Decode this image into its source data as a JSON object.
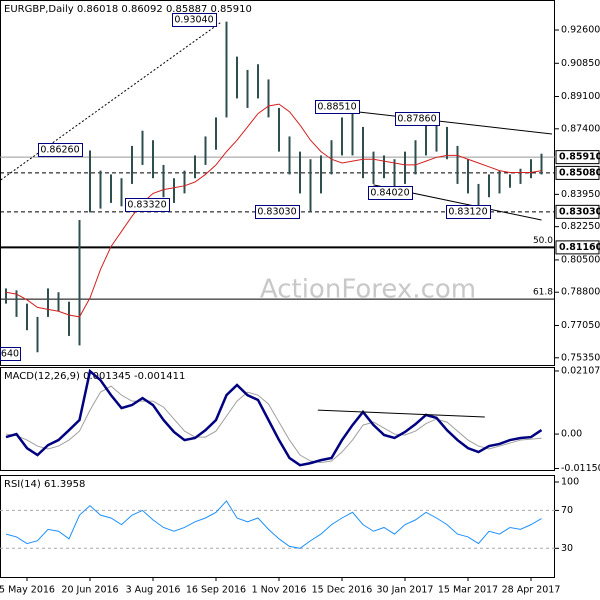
{
  "chart_data": [
    {
      "type": "ohlc",
      "title": "EURGBP,Daily  0.86018 0.86092 0.85887 0.85910",
      "watermark": "ActionForex.com",
      "categories": [
        null,
        null,
        "5 May 2016",
        null,
        null,
        null,
        null,
        null,
        "20 Jun 2016",
        null,
        null,
        null,
        null,
        null,
        "3 Aug 2016",
        null,
        null,
        null,
        null,
        null,
        "16 Sep 2016",
        null,
        null,
        null,
        null,
        null,
        "1 Nov 2016",
        null,
        null,
        null,
        null,
        null,
        "15 Dec 2016",
        null,
        null,
        null,
        null,
        null,
        "30 Jan 2017",
        null,
        null,
        null,
        null,
        null,
        "15 Mar 2017",
        null,
        null,
        null,
        null,
        null,
        "28 Apr 2017",
        null
      ],
      "high": [
        0.79,
        0.789,
        0.782,
        0.775,
        0.79,
        0.788,
        0.783,
        0.826,
        0.8626,
        0.852,
        0.85,
        0.848,
        0.865,
        0.873,
        0.868,
        0.855,
        0.848,
        0.852,
        0.86,
        0.87,
        0.88,
        0.9304,
        0.912,
        0.905,
        0.908,
        0.9,
        0.885,
        0.87,
        0.862,
        0.858,
        0.86,
        0.868,
        0.88,
        0.8851,
        0.875,
        0.862,
        0.86,
        0.858,
        0.862,
        0.868,
        0.8786,
        0.878,
        0.875,
        0.865,
        0.858,
        0.845,
        0.85,
        0.852,
        0.85,
        0.853,
        0.858,
        0.86092
      ],
      "low": [
        0.782,
        0.775,
        0.768,
        0.7564,
        0.775,
        0.778,
        0.765,
        0.76,
        0.83,
        0.832,
        0.835,
        0.8332,
        0.845,
        0.855,
        0.848,
        0.838,
        0.835,
        0.84,
        0.848,
        0.855,
        0.863,
        0.88,
        0.89,
        0.885,
        0.89,
        0.88,
        0.862,
        0.85,
        0.84,
        0.8303,
        0.84,
        0.85,
        0.86,
        0.86,
        0.848,
        0.845,
        0.848,
        0.8402,
        0.845,
        0.85,
        0.86,
        0.862,
        0.858,
        0.845,
        0.84,
        0.8312,
        0.838,
        0.84,
        0.843,
        0.845,
        0.848,
        0.85
      ],
      "color": "#2f4f4f",
      "ma": {
        "color": "#d42020",
        "values": [
          0.788,
          0.787,
          0.784,
          0.78,
          0.779,
          0.778,
          0.776,
          0.775,
          0.785,
          0.8,
          0.812,
          0.82,
          0.828,
          0.835,
          0.84,
          0.842,
          0.843,
          0.844,
          0.846,
          0.85,
          0.855,
          0.862,
          0.868,
          0.875,
          0.882,
          0.886,
          0.887,
          0.883,
          0.876,
          0.868,
          0.862,
          0.858,
          0.856,
          0.857,
          0.858,
          0.858,
          0.857,
          0.856,
          0.855,
          0.855,
          0.857,
          0.859,
          0.86,
          0.86,
          0.858,
          0.856,
          0.854,
          0.852,
          0.851,
          0.851,
          0.851,
          0.852
        ]
      },
      "ylim": [
        0.7497,
        0.9418
      ],
      "yticks": [
        {
          "value": 0.926,
          "label": "0.92600"
        },
        {
          "value": 0.9085,
          "label": "0.90850"
        },
        {
          "value": 0.891,
          "label": "0.89100"
        },
        {
          "value": 0.874,
          "label": "0.87400"
        },
        {
          "value": 0.8395,
          "label": "0.83950"
        },
        {
          "value": 0.8225,
          "label": "0.82250"
        },
        {
          "value": 0.805,
          "label": "0.80500"
        },
        {
          "value": 0.788,
          "label": "0.78800"
        },
        {
          "value": 0.7705,
          "label": "0.77050"
        },
        {
          "value": 0.7535,
          "label": "0.75350"
        }
      ],
      "levels": [
        {
          "value": 0.8591,
          "label": "0.85910",
          "style": "solid"
        },
        {
          "value": 0.8508,
          "label": "0.85080",
          "style": "dashed"
        },
        {
          "value": 0.8303,
          "label": "0.83030",
          "style": "dashed"
        },
        {
          "value": 0.8116,
          "label": "0.81160",
          "style": "double"
        }
      ],
      "fibs": [
        {
          "value": 0.8116,
          "label": "50.0"
        },
        {
          "value": 0.7844,
          "label": "61.8"
        }
      ],
      "annotations": [
        "0.93040",
        "0.86260",
        "0.83320",
        "0.83030",
        "0.88510",
        "0.87860",
        "0.84020",
        "0.83120",
        "640"
      ],
      "trendlines": [
        {
          "x": [
            -0.5,
            20.5
          ],
          "y": [
            0.8471,
            0.9302
          ],
          "style": "dotted"
        },
        {
          "x": [
            30,
            52
          ],
          "y": [
            0.8851,
            0.8713
          ],
          "style": "solid"
        },
        {
          "x": [
            35,
            51
          ],
          "y": [
            0.8445,
            0.826
          ],
          "style": "solid"
        }
      ]
    },
    {
      "type": "macd",
      "title": "MACD(12,26,9) 0.001345 -0.001411",
      "ylim": [
        -0.012,
        0.0224
      ],
      "yticks": [
        0.021074,
        {
          "value": 0,
          "label": "0.00"
        },
        -0.011507
      ],
      "main": {
        "color": "#000080",
        "values": [
          -0.001,
          0,
          -0.0047,
          -0.007,
          -0.0037,
          -0.002,
          0.0013,
          0.0047,
          0.021,
          0.018,
          0.013,
          0.0087,
          0.0097,
          0.012,
          0.0097,
          0.0047,
          0.0007,
          -0.002,
          -0.0013,
          0.0013,
          0.0047,
          0.013,
          0.0164,
          0.013,
          0.0114,
          0.0047,
          -0.002,
          -0.008,
          -0.0104,
          -0.0097,
          -0.0087,
          -0.008,
          -0.002,
          0.003,
          0.0074,
          0.003,
          -0.0003,
          -0.0013,
          0.0007,
          0.0033,
          0.0064,
          0.0054,
          0.0013,
          -0.002,
          -0.0047,
          -0.006,
          -0.004,
          -0.0033,
          -0.002,
          -0.0013,
          -0.001,
          0.001345
        ]
      },
      "signal": {
        "color": "#a0a0a0",
        "values": [
          0,
          -0.0005,
          -0.002,
          -0.004,
          -0.005,
          -0.004,
          -0.002,
          0.001,
          0.008,
          0.014,
          0.016,
          0.013,
          0.011,
          0.011,
          0.011,
          0.009,
          0.005,
          0.001,
          -0.001,
          -0.001,
          0.001,
          0.006,
          0.011,
          0.014,
          0.013,
          0.01,
          0.004,
          -0.002,
          -0.007,
          -0.009,
          -0.0095,
          -0.009,
          -0.006,
          -0.002,
          0.003,
          0.004,
          0.002,
          0,
          -0.0003,
          0.001,
          0.0035,
          0.005,
          0.004,
          0.001,
          -0.002,
          -0.004,
          -0.005,
          -0.004,
          -0.003,
          -0.002,
          -0.0017,
          -0.001411
        ]
      },
      "trendlines": [
        {
          "x": [
            29.7,
            45.6
          ],
          "y": [
            0.008,
            0.0057
          ],
          "style": "solid"
        }
      ]
    },
    {
      "type": "rsi",
      "title": "RSI(14) 61.3958",
      "ylim": [
        -0.3,
        107.4
      ],
      "yticks": [
        100,
        70,
        30
      ],
      "levels": [
        70,
        30
      ],
      "main": {
        "color": "#1e90ff",
        "values": [
          45,
          42,
          35,
          38,
          50,
          48,
          40,
          65,
          75,
          65,
          62,
          55,
          65,
          70,
          60,
          52,
          48,
          52,
          58,
          62,
          68,
          80,
          62,
          58,
          62,
          50,
          40,
          32,
          30,
          38,
          45,
          55,
          62,
          68,
          55,
          48,
          52,
          45,
          55,
          60,
          68,
          62,
          55,
          45,
          42,
          35,
          48,
          45,
          52,
          50,
          55,
          61.3958
        ]
      }
    }
  ]
}
